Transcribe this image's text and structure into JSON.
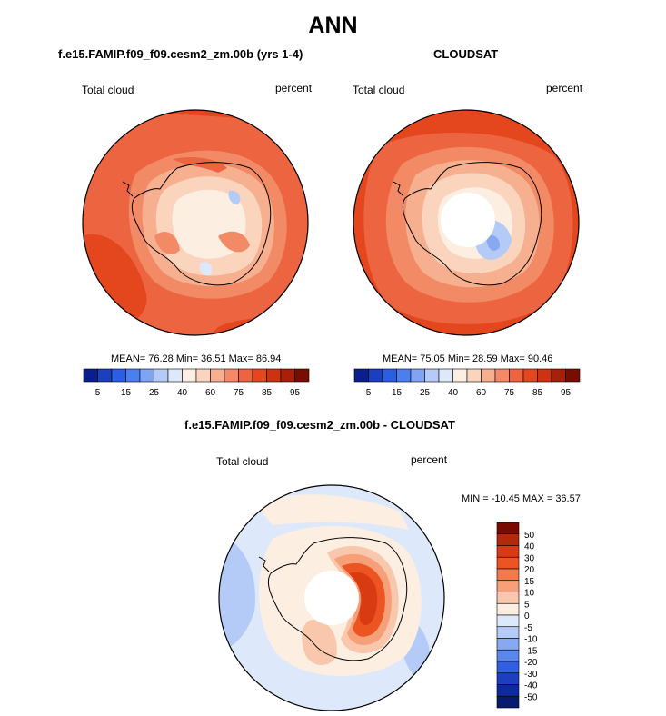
{
  "figure": {
    "title": "ANN"
  },
  "panels": [
    {
      "title": "f.e15.FAMIP.f09_f09.cesm2_zm.00b (yrs 1-4)",
      "left_label": "Total cloud",
      "right_label": "percent",
      "stats": "MEAN=  76.28  Min=  36.51  Max=  86.94"
    },
    {
      "title": "CLOUDSAT",
      "left_label": "Total cloud",
      "right_label": "percent",
      "stats": "MEAN=  75.05  Min=  28.59  Max=  90.46"
    },
    {
      "title": "f.e15.FAMIP.f09_f09.cesm2_zm.00b - CLOUDSAT",
      "left_label": "Total cloud",
      "right_label": "percent",
      "stats": "MIN = -10.45 MAX =  36.57"
    }
  ],
  "colorbar_field": {
    "tick_labels": [
      "5",
      "15",
      "25",
      "40",
      "60",
      "75",
      "85",
      "95"
    ],
    "colors": [
      "#0a1f8c",
      "#1b3fbd",
      "#2b5fe0",
      "#4a7ff0",
      "#7ea4f2",
      "#b3cbf6",
      "#dde9fb",
      "#fdeee2",
      "#fbd4bd",
      "#f7b08f",
      "#f28a66",
      "#ec6540",
      "#e4461e",
      "#cc3311",
      "#a52208",
      "#780d02"
    ]
  },
  "colorbar_diff": {
    "tick_labels": [
      "50",
      "40",
      "30",
      "20",
      "15",
      "10",
      "5",
      "0",
      "-5",
      "-10",
      "-15",
      "-20",
      "-30",
      "-40",
      "-50"
    ],
    "colors": [
      "#7a0a00",
      "#b22a0a",
      "#d83b12",
      "#ec5522",
      "#f27a4c",
      "#f6a07a",
      "#f9c8ac",
      "#fdeee2",
      "#dde9fb",
      "#b3cbf6",
      "#87a9f2",
      "#5a87ee",
      "#2f5fe2",
      "#1a3fbf",
      "#0d2a9a",
      "#071a70"
    ]
  }
}
